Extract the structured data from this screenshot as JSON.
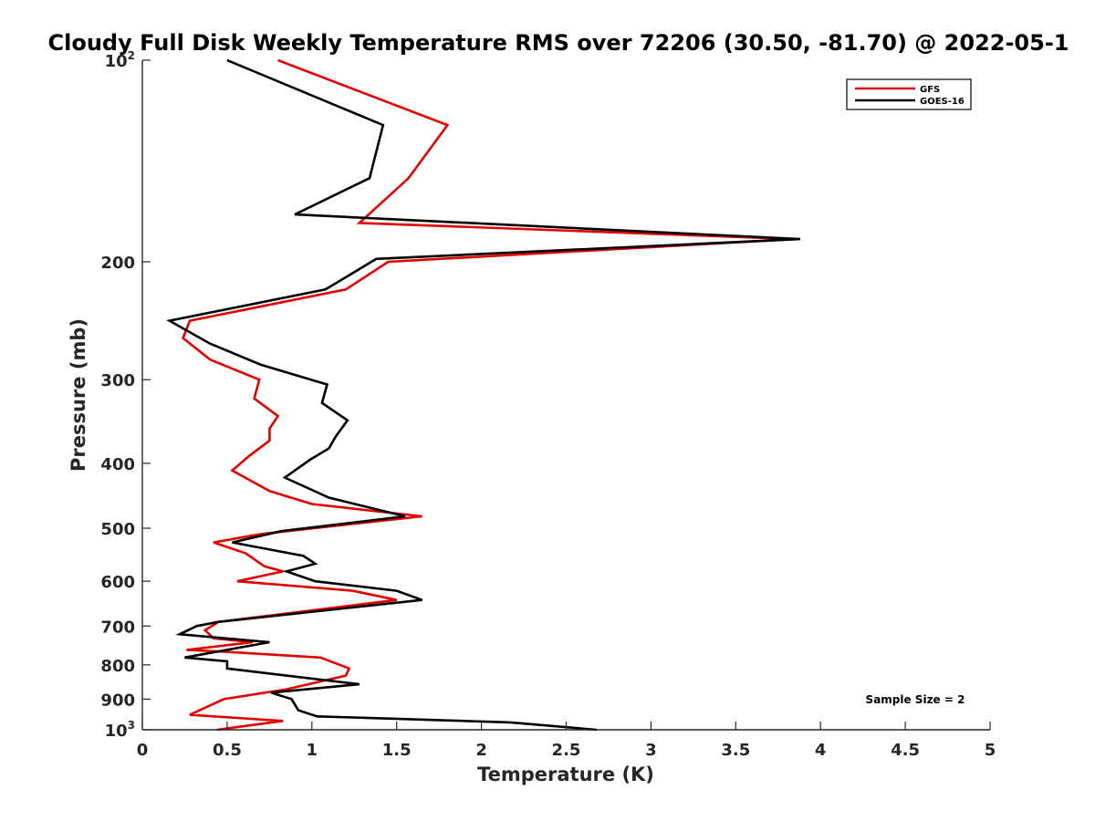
{
  "chart_data": {
    "type": "line",
    "title": "Cloudy Full Disk Weekly Temperature RMS over 72206 (30.50, -81.70) @ 2022-05-1",
    "xlabel": "Temperature (K)",
    "ylabel": "Pressure (mb)",
    "xlim": [
      0,
      5
    ],
    "ylim": [
      100,
      1000
    ],
    "yscale": "log",
    "y_reversed": true,
    "grid": false,
    "legend_position": "top-right",
    "x_ticks": [
      {
        "value": 0,
        "label": "0"
      },
      {
        "value": 0.5,
        "label": "0.5"
      },
      {
        "value": 1,
        "label": "1"
      },
      {
        "value": 1.5,
        "label": "1.5"
      },
      {
        "value": 2,
        "label": "2"
      },
      {
        "value": 2.5,
        "label": "2.5"
      },
      {
        "value": 3,
        "label": "3"
      },
      {
        "value": 3.5,
        "label": "3.5"
      },
      {
        "value": 4,
        "label": "4"
      },
      {
        "value": 4.5,
        "label": "4.5"
      },
      {
        "value": 5,
        "label": "5"
      }
    ],
    "y_ticks": [
      {
        "value": 100,
        "base": "10",
        "exp": "2"
      },
      {
        "value": 200,
        "label": "200"
      },
      {
        "value": 300,
        "label": "300"
      },
      {
        "value": 400,
        "label": "400"
      },
      {
        "value": 500,
        "label": "500"
      },
      {
        "value": 600,
        "label": "600"
      },
      {
        "value": 700,
        "label": "700"
      },
      {
        "value": 800,
        "label": "800"
      },
      {
        "value": 900,
        "label": "900"
      },
      {
        "value": 1000,
        "base": "10",
        "exp": "3"
      }
    ],
    "series": [
      {
        "name": "GFS",
        "color": "#e00000",
        "points": [
          [
            0.8,
            100
          ],
          [
            1.8,
            125
          ],
          [
            1.57,
            150
          ],
          [
            1.28,
            175
          ],
          [
            3.85,
            185
          ],
          [
            1.45,
            200
          ],
          [
            1.2,
            220
          ],
          [
            0.28,
            245
          ],
          [
            0.24,
            260
          ],
          [
            0.4,
            280
          ],
          [
            0.69,
            300
          ],
          [
            0.66,
            320
          ],
          [
            0.8,
            340
          ],
          [
            0.75,
            355
          ],
          [
            0.75,
            370
          ],
          [
            0.63,
            390
          ],
          [
            0.53,
            410
          ],
          [
            0.75,
            440
          ],
          [
            1.0,
            460
          ],
          [
            1.65,
            480
          ],
          [
            0.7,
            510
          ],
          [
            0.42,
            525
          ],
          [
            0.61,
            545
          ],
          [
            0.72,
            570
          ],
          [
            0.83,
            580
          ],
          [
            0.56,
            600
          ],
          [
            1.24,
            620
          ],
          [
            1.5,
            640
          ],
          [
            0.45,
            690
          ],
          [
            0.37,
            710
          ],
          [
            0.42,
            730
          ],
          [
            0.65,
            740
          ],
          [
            0.26,
            760
          ],
          [
            0.5,
            765
          ],
          [
            1.05,
            780
          ],
          [
            1.22,
            810
          ],
          [
            1.2,
            830
          ],
          [
            0.85,
            870
          ],
          [
            0.48,
            900
          ],
          [
            0.28,
            950
          ],
          [
            0.83,
            970
          ],
          [
            0.44,
            1000
          ]
        ]
      },
      {
        "name": "GOES-16",
        "color": "#000000",
        "points": [
          [
            0.5,
            100
          ],
          [
            1.42,
            125
          ],
          [
            1.34,
            150
          ],
          [
            0.9,
            170
          ],
          [
            3.88,
            185
          ],
          [
            1.38,
            198
          ],
          [
            1.08,
            220
          ],
          [
            0.16,
            245
          ],
          [
            0.4,
            265
          ],
          [
            0.7,
            285
          ],
          [
            1.09,
            305
          ],
          [
            1.06,
            325
          ],
          [
            1.21,
            345
          ],
          [
            1.14,
            365
          ],
          [
            1.1,
            380
          ],
          [
            0.99,
            395
          ],
          [
            0.84,
            420
          ],
          [
            1.1,
            450
          ],
          [
            1.55,
            480
          ],
          [
            0.82,
            505
          ],
          [
            0.53,
            525
          ],
          [
            0.95,
            550
          ],
          [
            1.02,
            565
          ],
          [
            0.85,
            580
          ],
          [
            1.02,
            600
          ],
          [
            1.5,
            620
          ],
          [
            1.65,
            640
          ],
          [
            0.45,
            690
          ],
          [
            0.32,
            700
          ],
          [
            0.22,
            720
          ],
          [
            0.75,
            740
          ],
          [
            0.25,
            780
          ],
          [
            0.5,
            790
          ],
          [
            0.5,
            810
          ],
          [
            1.28,
            855
          ],
          [
            0.76,
            880
          ],
          [
            0.88,
            900
          ],
          [
            0.92,
            935
          ],
          [
            1.03,
            955
          ],
          [
            2.17,
            975
          ],
          [
            2.68,
            1000
          ]
        ]
      }
    ],
    "annotations": [
      {
        "text": "Sample Size = 2",
        "position": "bottom-right"
      }
    ]
  }
}
